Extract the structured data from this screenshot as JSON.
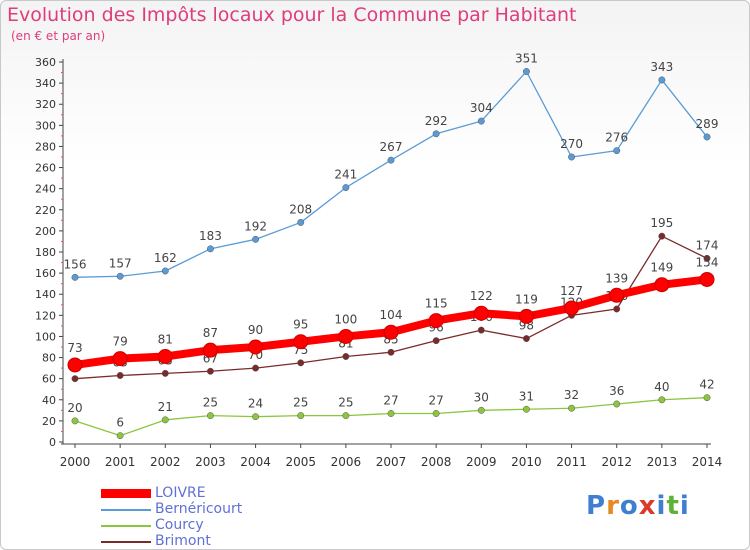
{
  "title": "Evolution des Impôts locaux pour la Commune par Habitant",
  "subtitle": "(en € et par an)",
  "logo": {
    "letters": [
      "P",
      "r",
      "o",
      "x",
      "i",
      "t",
      "i"
    ],
    "colors": [
      "#3f7fd2",
      "#e58b22",
      "#3f7fd2",
      "#d93a2a",
      "#3f7fd2",
      "#5cb436",
      "#3f7fd2"
    ]
  },
  "chart_data": {
    "type": "line",
    "x": [
      "2000",
      "2001",
      "2002",
      "2003",
      "2004",
      "2005",
      "2006",
      "2007",
      "2008",
      "2009",
      "2010",
      "2011",
      "2012",
      "2013",
      "2014"
    ],
    "ylim": [
      0,
      360
    ],
    "yticks": [
      "0",
      "20",
      "40",
      "60",
      "80",
      "100",
      "120",
      "140",
      "160",
      "180",
      "200",
      "220",
      "240",
      "260",
      "280",
      "300",
      "320",
      "340",
      "360"
    ],
    "grid": false,
    "legend_position": "bottom-left",
    "series": [
      {
        "name": "Bernéricourt",
        "color": "#5b9bd5",
        "values": [
          156,
          157,
          162,
          183,
          192,
          208,
          241,
          267,
          292,
          304,
          351,
          270,
          276,
          343,
          289
        ],
        "labels": [
          "156",
          "157",
          "162",
          "183",
          "192",
          "208",
          "241",
          "267",
          "292",
          "304",
          "351",
          "270",
          "276",
          "343",
          "289"
        ]
      },
      {
        "name": "Courcy",
        "color": "#8cc63f",
        "values": [
          20,
          6,
          21,
          25,
          24,
          25,
          25,
          27,
          27,
          30,
          31,
          32,
          36,
          40,
          42
        ],
        "labels": [
          "20",
          "6",
          "21",
          "25",
          "24",
          "25",
          "25",
          "27",
          "27",
          "30",
          "31",
          "32",
          "36",
          "40",
          "42"
        ]
      },
      {
        "name": "Brimont",
        "color": "#7b2a2a",
        "values": [
          60,
          63,
          65,
          67,
          70,
          75,
          81,
          85,
          96,
          106,
          98,
          120,
          126,
          195,
          174
        ],
        "labels": [
          "",
          "63",
          "65",
          "67",
          "70",
          "75",
          "81",
          "85",
          "96",
          "106",
          "98",
          "120",
          "126",
          "195",
          "174"
        ]
      },
      {
        "name": "LOIVRE",
        "color": "#ff0000",
        "values": [
          73,
          79,
          81,
          87,
          90,
          95,
          100,
          104,
          115,
          122,
          119,
          127,
          139,
          149,
          154
        ],
        "labels": [
          "73",
          "79",
          "81",
          "87",
          "90",
          "95",
          "100",
          "104",
          "115",
          "122",
          "119",
          "127",
          "139",
          "149",
          "154"
        ]
      }
    ],
    "legend": [
      "LOIVRE",
      "Bernéricourt",
      "Courcy",
      "Brimont"
    ]
  }
}
